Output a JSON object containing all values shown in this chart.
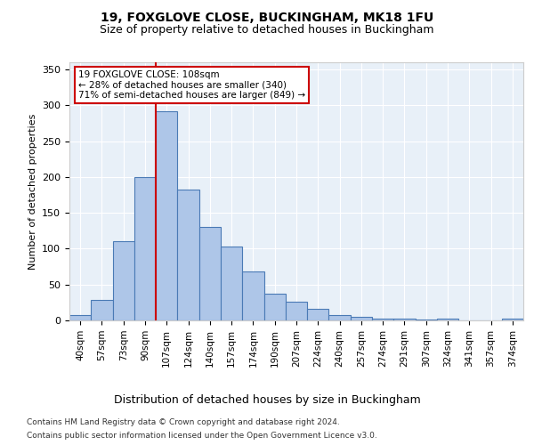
{
  "title1": "19, FOXGLOVE CLOSE, BUCKINGHAM, MK18 1FU",
  "title2": "Size of property relative to detached houses in Buckingham",
  "xlabel": "Distribution of detached houses by size in Buckingham",
  "ylabel": "Number of detached properties",
  "bar_labels": [
    "40sqm",
    "57sqm",
    "73sqm",
    "90sqm",
    "107sqm",
    "124sqm",
    "140sqm",
    "157sqm",
    "174sqm",
    "190sqm",
    "207sqm",
    "224sqm",
    "240sqm",
    "257sqm",
    "274sqm",
    "291sqm",
    "307sqm",
    "324sqm",
    "341sqm",
    "357sqm",
    "374sqm"
  ],
  "bar_heights": [
    7,
    28,
    110,
    200,
    292,
    182,
    130,
    103,
    68,
    37,
    26,
    16,
    7,
    5,
    3,
    3,
    1,
    2,
    0,
    0,
    2
  ],
  "bar_color": "#aec6e8",
  "bar_edge_color": "#4a7ab5",
  "vline_x": 3.5,
  "vline_color": "#cc0000",
  "annotation_text": "19 FOXGLOVE CLOSE: 108sqm\n← 28% of detached houses are smaller (340)\n71% of semi-detached houses are larger (849) →",
  "annotation_box_color": "#ffffff",
  "annotation_box_edge": "#cc0000",
  "ylim": [
    0,
    360
  ],
  "yticks": [
    0,
    50,
    100,
    150,
    200,
    250,
    300,
    350
  ],
  "footnote1": "Contains HM Land Registry data © Crown copyright and database right 2024.",
  "footnote2": "Contains public sector information licensed under the Open Government Licence v3.0.",
  "bg_color": "#e8f0f8",
  "fig_bg_color": "#ffffff"
}
